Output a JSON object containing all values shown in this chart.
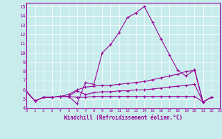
{
  "bg_color": "#c8ecec",
  "line_color": "#990099",
  "xlabel": "Windchill (Refroidissement éolien,°C)",
  "xlim": [
    0,
    23
  ],
  "ylim": [
    4,
    15.4
  ],
  "yticks": [
    4,
    5,
    6,
    7,
    8,
    9,
    10,
    11,
    12,
    13,
    14,
    15
  ],
  "xticks": [
    0,
    1,
    2,
    3,
    4,
    5,
    6,
    7,
    8,
    9,
    10,
    11,
    12,
    13,
    14,
    15,
    16,
    17,
    18,
    19,
    20,
    21,
    22,
    23
  ],
  "series": [
    {
      "x": [
        0,
        1,
        2,
        3,
        4,
        5,
        6,
        7,
        8,
        9,
        10,
        11,
        12,
        13,
        14,
        15,
        16,
        17,
        18,
        19,
        20,
        21,
        22
      ],
      "y": [
        5.8,
        4.8,
        5.2,
        5.2,
        5.3,
        5.3,
        4.5,
        6.8,
        6.6,
        10.0,
        10.9,
        12.2,
        13.8,
        14.3,
        15.0,
        13.3,
        11.5,
        9.8,
        8.1,
        7.5,
        8.2,
        4.7,
        5.2
      ]
    },
    {
      "x": [
        0,
        1,
        2,
        3,
        4,
        5,
        6,
        7,
        8,
        9,
        10,
        11,
        12,
        13,
        14,
        15,
        16,
        17,
        18,
        19,
        20,
        21,
        22
      ],
      "y": [
        5.8,
        4.8,
        5.2,
        5.2,
        5.3,
        5.5,
        6.0,
        6.3,
        6.4,
        6.5,
        6.5,
        6.6,
        6.7,
        6.8,
        6.9,
        7.1,
        7.3,
        7.5,
        7.7,
        8.0,
        8.1,
        4.7,
        5.2
      ]
    },
    {
      "x": [
        0,
        1,
        2,
        3,
        4,
        5,
        6,
        7,
        8,
        9,
        10,
        11,
        12,
        13,
        14,
        15,
        16,
        17,
        18,
        19,
        20,
        21,
        22
      ],
      "y": [
        5.8,
        4.8,
        5.2,
        5.2,
        5.3,
        5.3,
        5.9,
        5.5,
        5.7,
        5.8,
        5.8,
        5.9,
        5.9,
        6.0,
        6.0,
        6.1,
        6.2,
        6.3,
        6.4,
        6.5,
        6.6,
        4.7,
        5.2
      ]
    },
    {
      "x": [
        0,
        1,
        2,
        3,
        4,
        5,
        6,
        7,
        8,
        9,
        10,
        11,
        12,
        13,
        14,
        15,
        16,
        17,
        18,
        19,
        20,
        21,
        22
      ],
      "y": [
        5.8,
        4.8,
        5.2,
        5.2,
        5.3,
        5.3,
        5.2,
        5.2,
        5.3,
        5.3,
        5.3,
        5.3,
        5.3,
        5.3,
        5.3,
        5.3,
        5.3,
        5.3,
        5.3,
        5.3,
        5.3,
        4.7,
        5.2
      ]
    }
  ]
}
